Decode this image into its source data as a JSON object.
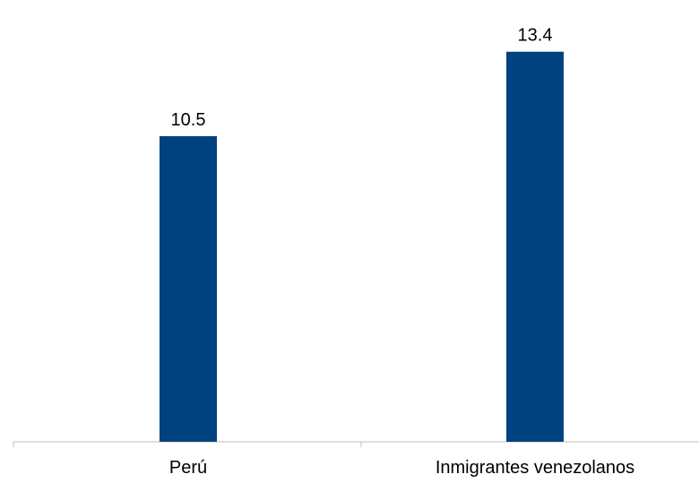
{
  "chart_data": {
    "type": "bar",
    "categories": [
      "Perú",
      "Inmigrantes venezolanos"
    ],
    "values": [
      10.5,
      13.4
    ],
    "data_labels": [
      "10.5",
      "13.4"
    ],
    "ylim": [
      0,
      14.5
    ],
    "grid": false,
    "legend": "none",
    "colors": {
      "bar": "#00427F",
      "axis": "#BFBFBF"
    }
  }
}
